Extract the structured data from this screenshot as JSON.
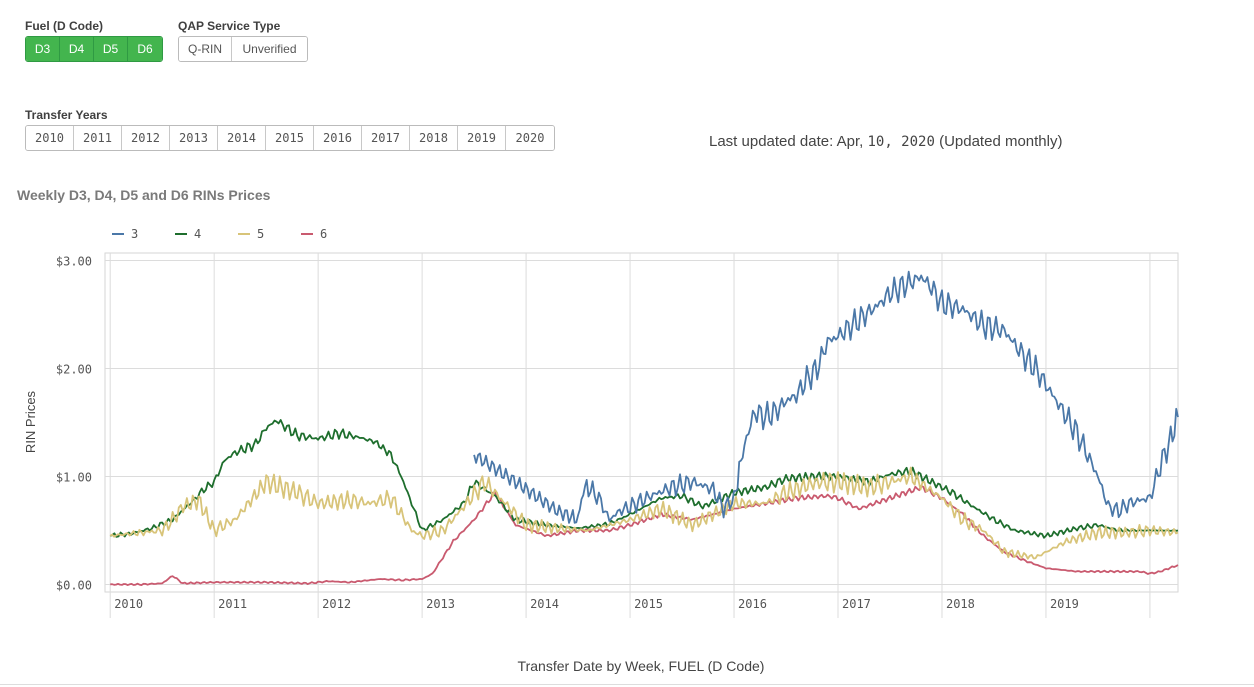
{
  "filters": {
    "fuel": {
      "label": "Fuel (D Code)",
      "options": [
        "D3",
        "D4",
        "D5",
        "D6"
      ]
    },
    "qap": {
      "label": "QAP Service Type",
      "options": [
        "Q-RIN",
        "Unverified"
      ]
    },
    "years": {
      "label": "Transfer Years",
      "options": [
        "2010",
        "2011",
        "2012",
        "2013",
        "2014",
        "2015",
        "2016",
        "2017",
        "2018",
        "2019",
        "2020"
      ]
    }
  },
  "updated": {
    "prefix": "Last updated date: Apr, ",
    "date": "10, 2020",
    "suffix": " (Updated monthly)"
  },
  "colors": {
    "selected": "#43b54e",
    "s3": "#4b78a8",
    "s4": "#1e6e2d",
    "s5": "#d8c479",
    "s6": "#c95a6f"
  },
  "chart_data": {
    "type": "line",
    "title": "Weekly D3, D4, D5 and D6 RINs Prices",
    "xlabel": "Transfer Date by Week,  FUEL (D Code)",
    "ylabel": "RIN Prices",
    "xlim": [
      2009.95,
      2020.27
    ],
    "ylim": [
      -0.07,
      3.07
    ],
    "yticks": [
      0,
      1,
      2,
      3
    ],
    "ytick_labels": [
      "$0.00",
      "$1.00",
      "$2.00",
      "$3.00"
    ],
    "xticks": [
      2010,
      2011,
      2012,
      2013,
      2014,
      2015,
      2016,
      2017,
      2018,
      2019
    ],
    "xtick_labels": [
      "2010",
      "2011",
      "2012",
      "2013",
      "2014",
      "2015",
      "2016",
      "2017",
      "2018",
      "2019"
    ],
    "legend_position": "top-left",
    "series": [
      {
        "name": "3",
        "x": [
          2013.5,
          2013.9,
          2014.3,
          2014.45,
          2014.5,
          2014.55,
          2014.6,
          2014.7,
          2014.8,
          2014.9,
          2015.0,
          2015.2,
          2015.4,
          2015.6,
          2015.8,
          2015.9,
          2016.0,
          2016.05,
          2016.1,
          2016.2,
          2016.3,
          2016.4,
          2016.5,
          2016.6,
          2016.7,
          2016.8,
          2016.9,
          2017.0,
          2017.2,
          2017.4,
          2017.5,
          2017.6,
          2017.7,
          2017.8,
          2017.9,
          2018.0,
          2018.2,
          2018.4,
          2018.6,
          2018.8,
          2018.9,
          2019.0,
          2019.1,
          2019.2,
          2019.3,
          2019.4,
          2019.5,
          2019.6,
          2019.7,
          2019.8,
          2019.9,
          2020.0,
          2020.1,
          2020.2,
          2020.27
        ],
        "y": [
          1.2,
          0.95,
          0.68,
          0.62,
          0.6,
          0.88,
          0.9,
          0.8,
          0.6,
          0.68,
          0.72,
          0.82,
          0.9,
          0.95,
          0.88,
          0.7,
          0.8,
          1.05,
          1.3,
          1.6,
          1.55,
          1.6,
          1.7,
          1.75,
          1.9,
          2.0,
          2.25,
          2.3,
          2.45,
          2.6,
          2.7,
          2.75,
          2.8,
          2.85,
          2.75,
          2.6,
          2.55,
          2.4,
          2.35,
          2.1,
          2.0,
          1.85,
          1.7,
          1.55,
          1.4,
          1.2,
          1.0,
          0.72,
          0.68,
          0.75,
          0.78,
          0.8,
          1.1,
          1.35,
          1.55
        ]
      },
      {
        "name": "4",
        "x": [
          2010.0,
          2010.2,
          2010.4,
          2010.6,
          2010.8,
          2010.9,
          2011.0,
          2011.1,
          2011.2,
          2011.4,
          2011.5,
          2011.6,
          2011.7,
          2011.8,
          2012.0,
          2012.2,
          2012.4,
          2012.55,
          2012.7,
          2012.8,
          2013.0,
          2013.2,
          2013.4,
          2013.5,
          2013.7,
          2013.9,
          2014.2,
          2014.5,
          2014.8,
          2015.0,
          2015.3,
          2015.5,
          2015.7,
          2016.0,
          2016.3,
          2016.5,
          2016.8,
          2017.0,
          2017.3,
          2017.5,
          2017.7,
          2018.0,
          2018.1,
          2018.3,
          2018.5,
          2018.7,
          2019.0,
          2019.3,
          2019.5,
          2019.7,
          2020.0,
          2020.27
        ],
        "y": [
          0.45,
          0.47,
          0.52,
          0.6,
          0.78,
          0.88,
          0.95,
          1.15,
          1.22,
          1.3,
          1.45,
          1.52,
          1.45,
          1.38,
          1.35,
          1.4,
          1.36,
          1.32,
          1.2,
          1.0,
          0.5,
          0.6,
          0.75,
          0.95,
          0.82,
          0.6,
          0.55,
          0.52,
          0.56,
          0.65,
          0.8,
          0.82,
          0.72,
          0.85,
          0.9,
          0.98,
          1.0,
          1.0,
          0.95,
          1.02,
          1.05,
          0.9,
          0.85,
          0.72,
          0.6,
          0.5,
          0.45,
          0.52,
          0.55,
          0.5,
          0.5,
          0.5
        ]
      },
      {
        "name": "5",
        "x": [
          2010.0,
          2010.3,
          2010.5,
          2010.6,
          2010.7,
          2010.85,
          2011.0,
          2011.2,
          2011.5,
          2011.8,
          2012.0,
          2012.3,
          2012.5,
          2012.7,
          2012.9,
          2013.0,
          2013.2,
          2013.4,
          2013.6,
          2013.8,
          2014.0,
          2014.3,
          2014.6,
          2015.0,
          2015.3,
          2015.6,
          2016.0,
          2016.3,
          2016.5,
          2016.8,
          2017.0,
          2017.3,
          2017.5,
          2017.7,
          2018.0,
          2018.2,
          2018.4,
          2018.6,
          2018.9,
          2019.2,
          2019.5,
          2019.8,
          2020.0,
          2020.27
        ],
        "y": [
          0.45,
          0.48,
          0.5,
          0.6,
          0.72,
          0.78,
          0.5,
          0.6,
          0.95,
          0.85,
          0.75,
          0.78,
          0.75,
          0.8,
          0.5,
          0.45,
          0.5,
          0.72,
          0.95,
          0.75,
          0.55,
          0.52,
          0.5,
          0.6,
          0.7,
          0.55,
          0.75,
          0.75,
          0.85,
          0.95,
          0.95,
          0.9,
          0.95,
          1.0,
          0.8,
          0.6,
          0.5,
          0.3,
          0.25,
          0.4,
          0.48,
          0.48,
          0.5,
          0.48
        ]
      },
      {
        "name": "6",
        "x": [
          2010.0,
          2010.3,
          2010.5,
          2010.6,
          2010.7,
          2011.0,
          2011.5,
          2011.9,
          2012.0,
          2012.1,
          2012.3,
          2012.6,
          2012.8,
          2013.0,
          2013.1,
          2013.3,
          2013.5,
          2013.7,
          2013.9,
          2014.2,
          2014.5,
          2014.8,
          2015.0,
          2015.3,
          2015.6,
          2016.0,
          2016.3,
          2016.6,
          2016.9,
          2017.0,
          2017.2,
          2017.5,
          2017.8,
          2018.0,
          2018.2,
          2018.4,
          2018.6,
          2018.8,
          2019.0,
          2019.3,
          2019.6,
          2019.9,
          2020.0,
          2020.1,
          2020.27
        ],
        "y": [
          0.0,
          0.0,
          0.01,
          0.08,
          0.01,
          0.02,
          0.02,
          0.01,
          0.02,
          0.03,
          0.02,
          0.05,
          0.04,
          0.05,
          0.1,
          0.4,
          0.6,
          0.85,
          0.55,
          0.45,
          0.5,
          0.5,
          0.55,
          0.65,
          0.6,
          0.7,
          0.75,
          0.8,
          0.82,
          0.8,
          0.7,
          0.8,
          0.9,
          0.8,
          0.65,
          0.45,
          0.3,
          0.22,
          0.15,
          0.12,
          0.12,
          0.12,
          0.1,
          0.12,
          0.18
        ]
      }
    ]
  }
}
